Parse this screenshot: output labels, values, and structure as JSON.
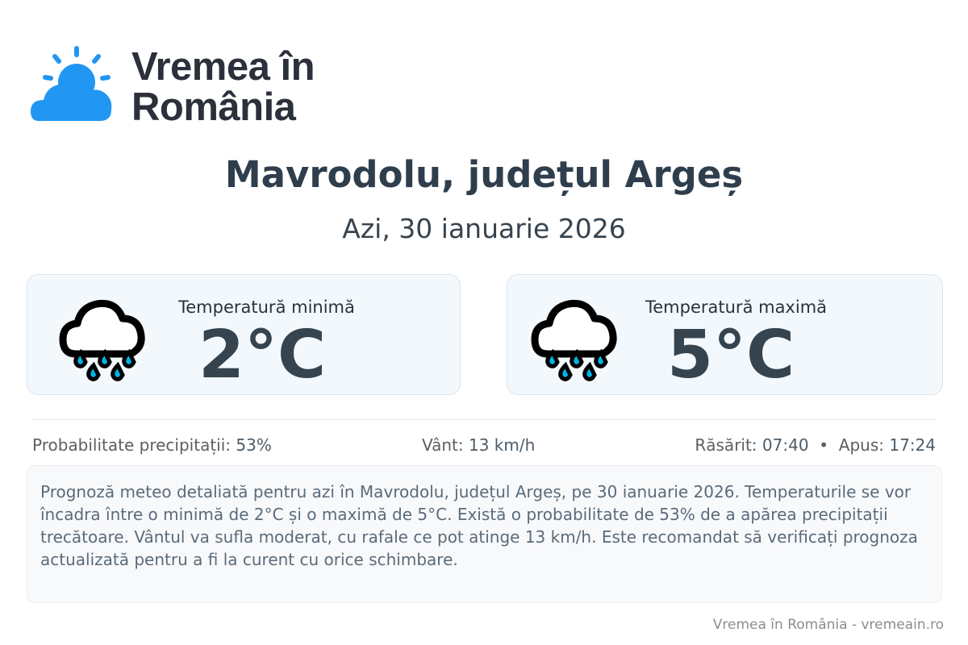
{
  "brand": {
    "line1": "Vremea în",
    "line2": "România",
    "icon": "sun-cloud-logo-icon",
    "color": "#2196f3"
  },
  "header": {
    "title": "Mavrodolu, județul Argeș",
    "date": "Azi, 30 ianuarie 2026"
  },
  "cards": [
    {
      "label": "Temperatură minimă",
      "value": "2°C",
      "icon": "rain-cloud-icon"
    },
    {
      "label": "Temperatură maximă",
      "value": "5°C",
      "icon": "rain-cloud-icon"
    }
  ],
  "stats": {
    "precip_label": "Probabilitate precipitații:",
    "precip_value": "53%",
    "wind_label": "Vânt:",
    "wind_value": "13 km/h",
    "sunrise_label": "Răsărit:",
    "sunrise_value": "07:40",
    "separator": "•",
    "sunset_label": "Apus:",
    "sunset_value": "17:24"
  },
  "description": "Prognoză meteo detaliată pentru azi în Mavrodolu, județul Argeș, pe 30 ianuarie 2026. Temperaturile se vor încadra între o minimă de 2°C și o maximă de 5°C. Există o probabilitate de 53% de a apărea precipitații trecătoare. Vântul va sufla moderat, cu rafale ce pot atinge 13 km/h. Este recomandat să verificați prognoza actualizată pentru a fi la curent cu orice schimbare.",
  "footer": "Vremea în România - vremeain.ro"
}
